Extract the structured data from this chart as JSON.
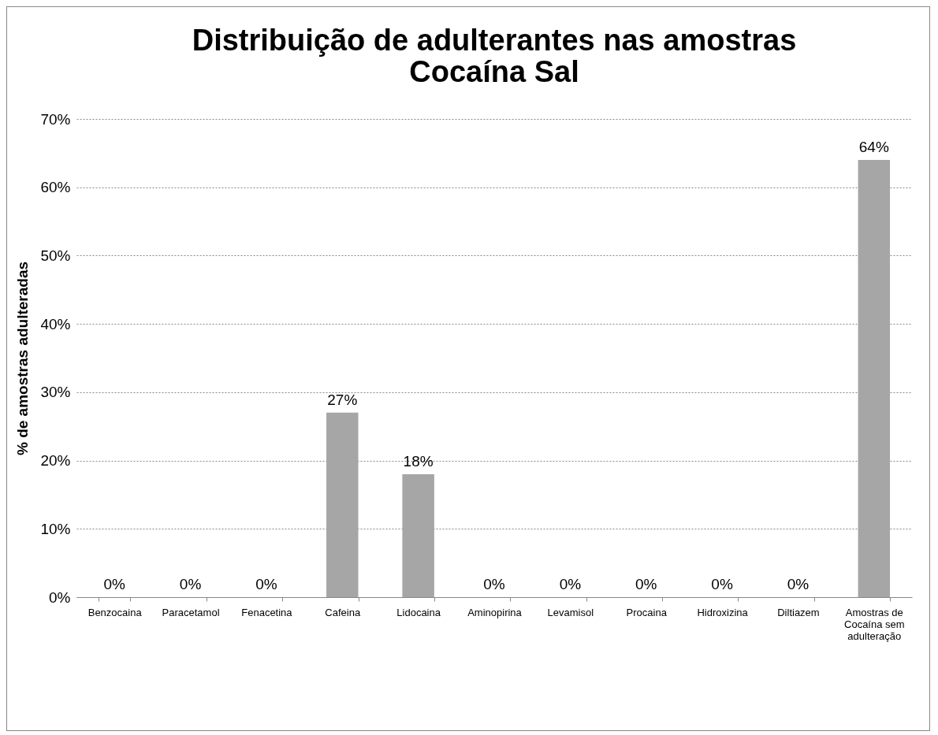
{
  "chart_data": {
    "type": "bar",
    "title": "Distribuição de adulterantes nas amostras\nCocaína Sal",
    "ylabel": "% de amostras adulteradas",
    "categories": [
      "Benzocaina",
      "Paracetamol",
      "Fenacetina",
      "Cafeina",
      "Lidocaina",
      "Aminopirina",
      "Levamisol",
      "Procaina",
      "Hidroxizina",
      "Diltiazem",
      "Amostras de Cocaína sem adulteração"
    ],
    "values": [
      0,
      0,
      0,
      27,
      18,
      0,
      0,
      0,
      0,
      0,
      64
    ],
    "value_labels": [
      "0%",
      "0%",
      "0%",
      "27%",
      "18%",
      "0%",
      "0%",
      "0%",
      "0%",
      "0%",
      "64%"
    ],
    "color": "#a6a6a6",
    "ylim": [
      0,
      70
    ],
    "yticks": [
      {
        "value": 0,
        "label": "0%"
      },
      {
        "value": 10,
        "label": "10%"
      },
      {
        "value": 20,
        "label": "20%"
      },
      {
        "value": 30,
        "label": "30%"
      },
      {
        "value": 40,
        "label": "40%"
      },
      {
        "value": 50,
        "label": "50%"
      },
      {
        "value": 60,
        "label": "60%"
      },
      {
        "value": 70,
        "label": "70%"
      }
    ],
    "grid": "y"
  }
}
